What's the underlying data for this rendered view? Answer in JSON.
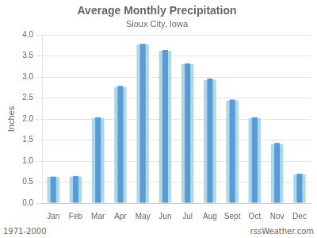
{
  "chart_data": {
    "type": "bar",
    "title": "Average Monthly Precipitation",
    "subtitle": "Sioux City, Iowa",
    "ylabel": "Inches",
    "footer_left": "1971-2000",
    "footer_right": "rssWeather.com",
    "categories": [
      "Jan",
      "Feb",
      "Mar",
      "Apr",
      "May",
      "Jun",
      "Jul",
      "Aug",
      "Sept",
      "Oct",
      "Nov",
      "Dec"
    ],
    "series": [
      {
        "color": "#ADD8E6",
        "values": [
          0.62,
          0.63,
          2.02,
          2.76,
          3.77,
          3.62,
          3.3,
          2.93,
          2.44,
          2.02,
          1.4,
          0.68
        ]
      },
      {
        "color": "#5B9BD5",
        "values": [
          0.63,
          0.64,
          2.04,
          2.79,
          3.79,
          3.64,
          3.32,
          2.96,
          2.46,
          2.04,
          1.43,
          0.7
        ]
      }
    ],
    "ylim": [
      0,
      4.0
    ],
    "yticks": [
      {
        "value": 0,
        "label": "0.0"
      },
      0.5,
      {
        "value": 1,
        "label": "1.0"
      },
      1.5,
      {
        "value": 2,
        "label": "2.0"
      },
      2.5,
      {
        "value": 3,
        "label": "3.0"
      },
      3.5,
      {
        "value": 4,
        "label": "4.0"
      }
    ],
    "grid": true
  }
}
